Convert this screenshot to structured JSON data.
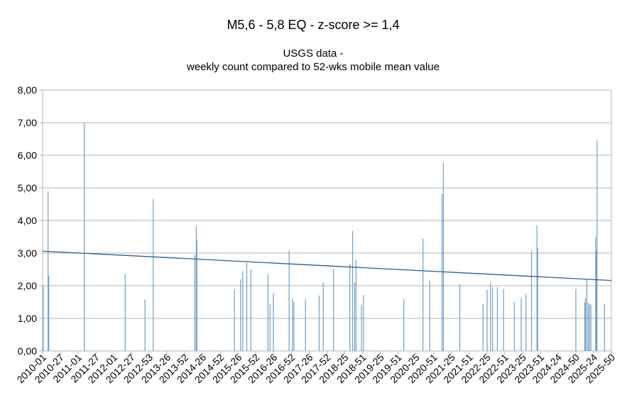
{
  "chart_data": {
    "type": "bar",
    "title": "M5,6 - 5,8 EQ - z-score >= 1,4",
    "subtitle_line1": "USGS data -",
    "subtitle_line2": "weekly count compared to 52-wks mobile mean value",
    "xlabel": "",
    "ylabel": "",
    "ylim": [
      0,
      8
    ],
    "y_ticks": [
      "0,00",
      "1,00",
      "2,00",
      "3,00",
      "4,00",
      "5,00",
      "6,00",
      "7,00",
      "8,00"
    ],
    "x_tick_labels": [
      "2010-01",
      "2010-27",
      "2011-01",
      "2011-27",
      "2012-01",
      "2012-27",
      "2012-53",
      "2013-26",
      "2013-52",
      "2014-26",
      "2014-52",
      "2015-26",
      "2015-52",
      "2016-26",
      "2016-52",
      "2017-26",
      "2017-52",
      "2018-25",
      "2018-51",
      "2019-25",
      "2019-51",
      "2020-25",
      "2020-51",
      "2021-25",
      "2021-51",
      "2022-25",
      "2022-51",
      "2023-25",
      "2023-51",
      "2024-24",
      "2024-50",
      "2025-24",
      "2025-50"
    ],
    "grid": true,
    "legend": "none",
    "bar_color": "#6f9fc6",
    "trend_color": "#2f5f8f",
    "x_count": 833,
    "values": [
      {
        "x": 1,
        "y": 2.0
      },
      {
        "x": 8,
        "y": 4.9
      },
      {
        "x": 9,
        "y": 2.3
      },
      {
        "x": 61,
        "y": 7.0
      },
      {
        "x": 121,
        "y": 2.35
      },
      {
        "x": 150,
        "y": 1.58
      },
      {
        "x": 162,
        "y": 4.67
      },
      {
        "x": 223,
        "y": 2.95
      },
      {
        "x": 225,
        "y": 3.82
      },
      {
        "x": 226,
        "y": 3.4
      },
      {
        "x": 281,
        "y": 1.9
      },
      {
        "x": 290,
        "y": 2.2
      },
      {
        "x": 293,
        "y": 2.45
      },
      {
        "x": 299,
        "y": 2.7
      },
      {
        "x": 305,
        "y": 2.5
      },
      {
        "x": 330,
        "y": 2.35
      },
      {
        "x": 333,
        "y": 1.45
      },
      {
        "x": 338,
        "y": 1.78
      },
      {
        "x": 361,
        "y": 3.08
      },
      {
        "x": 366,
        "y": 1.6
      },
      {
        "x": 368,
        "y": 1.5
      },
      {
        "x": 385,
        "y": 1.6
      },
      {
        "x": 405,
        "y": 1.7
      },
      {
        "x": 411,
        "y": 2.1
      },
      {
        "x": 426,
        "y": 2.52
      },
      {
        "x": 450,
        "y": 2.68
      },
      {
        "x": 454,
        "y": 3.68
      },
      {
        "x": 457,
        "y": 2.1
      },
      {
        "x": 459,
        "y": 2.8
      },
      {
        "x": 467,
        "y": 1.42
      },
      {
        "x": 470,
        "y": 1.72
      },
      {
        "x": 529,
        "y": 1.6
      },
      {
        "x": 557,
        "y": 3.45
      },
      {
        "x": 567,
        "y": 2.15
      },
      {
        "x": 585,
        "y": 4.82
      },
      {
        "x": 587,
        "y": 5.78
      },
      {
        "x": 611,
        "y": 2.05
      },
      {
        "x": 645,
        "y": 1.45
      },
      {
        "x": 651,
        "y": 1.88
      },
      {
        "x": 656,
        "y": 2.1
      },
      {
        "x": 659,
        "y": 1.95
      },
      {
        "x": 666,
        "y": 1.95
      },
      {
        "x": 675,
        "y": 1.9
      },
      {
        "x": 691,
        "y": 1.5
      },
      {
        "x": 701,
        "y": 1.62
      },
      {
        "x": 708,
        "y": 1.75
      },
      {
        "x": 716,
        "y": 3.1
      },
      {
        "x": 724,
        "y": 3.85
      },
      {
        "x": 725,
        "y": 3.15
      },
      {
        "x": 781,
        "y": 1.9
      },
      {
        "x": 794,
        "y": 1.5
      },
      {
        "x": 795,
        "y": 1.62
      },
      {
        "x": 797,
        "y": 2.2
      },
      {
        "x": 799,
        "y": 1.48
      },
      {
        "x": 801,
        "y": 1.45
      },
      {
        "x": 803,
        "y": 1.42
      },
      {
        "x": 810,
        "y": 3.5
      },
      {
        "x": 811,
        "y": 3.08
      },
      {
        "x": 812,
        "y": 6.45
      },
      {
        "x": 823,
        "y": 1.45
      }
    ],
    "trendline": {
      "start": 3.06,
      "end": 2.16
    }
  }
}
